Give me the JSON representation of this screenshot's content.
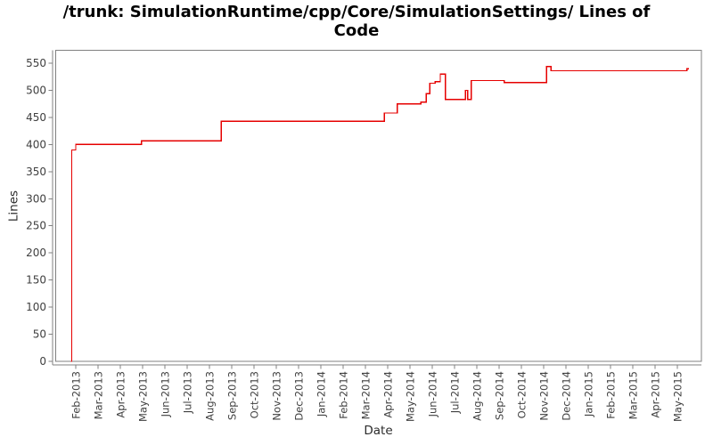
{
  "title": "/trunk: SimulationRuntime/cpp/Core/SimulationSettings/ Lines of Code",
  "colors": {
    "series_line": "#e60000",
    "axis": "#808080",
    "tick_label": "#3f3f3f",
    "title_text": "#000000",
    "background": "#ffffff"
  },
  "chart_data": {
    "type": "line",
    "subtype": "step",
    "title": "/trunk: SimulationRuntime/cpp/Core/SimulationSettings/ Lines of Code",
    "xlabel": "Date",
    "ylabel": "Lines",
    "ylim": [
      0,
      550
    ],
    "grid": "off",
    "legend": "none",
    "y_ticks": [
      0,
      50,
      100,
      150,
      200,
      250,
      300,
      350,
      400,
      450,
      500,
      550
    ],
    "x_tick_labels": [
      "Feb-2013",
      "Mar-2013",
      "Apr-2013",
      "May-2013",
      "Jun-2013",
      "Jul-2013",
      "Aug-2013",
      "Sep-2013",
      "Oct-2013",
      "Nov-2013",
      "Dec-2013",
      "Jan-2014",
      "Feb-2014",
      "Mar-2014",
      "Apr-2014",
      "May-2014",
      "Jun-2014",
      "Jul-2014",
      "Aug-2014",
      "Sep-2014",
      "Oct-2014",
      "Nov-2014",
      "Dec-2014",
      "Jan-2015",
      "Feb-2015",
      "Mar-2015",
      "Apr-2015",
      "May-2015"
    ],
    "series": [
      {
        "name": "Lines of Code",
        "color": "#e60000",
        "end_date": "2015-05-17",
        "points": [
          {
            "date": "2013-01-25",
            "lines": 0
          },
          {
            "date": "2013-01-26",
            "lines": 390
          },
          {
            "date": "2013-02-01",
            "lines": 400
          },
          {
            "date": "2013-04-30",
            "lines": 407
          },
          {
            "date": "2013-08-17",
            "lines": 443
          },
          {
            "date": "2014-03-27",
            "lines": 458
          },
          {
            "date": "2014-04-14",
            "lines": 475
          },
          {
            "date": "2014-05-16",
            "lines": 478
          },
          {
            "date": "2014-05-23",
            "lines": 494
          },
          {
            "date": "2014-05-28",
            "lines": 513
          },
          {
            "date": "2014-06-05",
            "lines": 516
          },
          {
            "date": "2014-06-12",
            "lines": 530
          },
          {
            "date": "2014-06-19",
            "lines": 483
          },
          {
            "date": "2014-07-16",
            "lines": 500
          },
          {
            "date": "2014-07-19",
            "lines": 483
          },
          {
            "date": "2014-07-24",
            "lines": 518
          },
          {
            "date": "2014-09-08",
            "lines": 514
          },
          {
            "date": "2014-11-05",
            "lines": 544
          },
          {
            "date": "2014-11-11",
            "lines": 536
          },
          {
            "date": "2015-05-14",
            "lines": 540
          }
        ]
      }
    ]
  }
}
